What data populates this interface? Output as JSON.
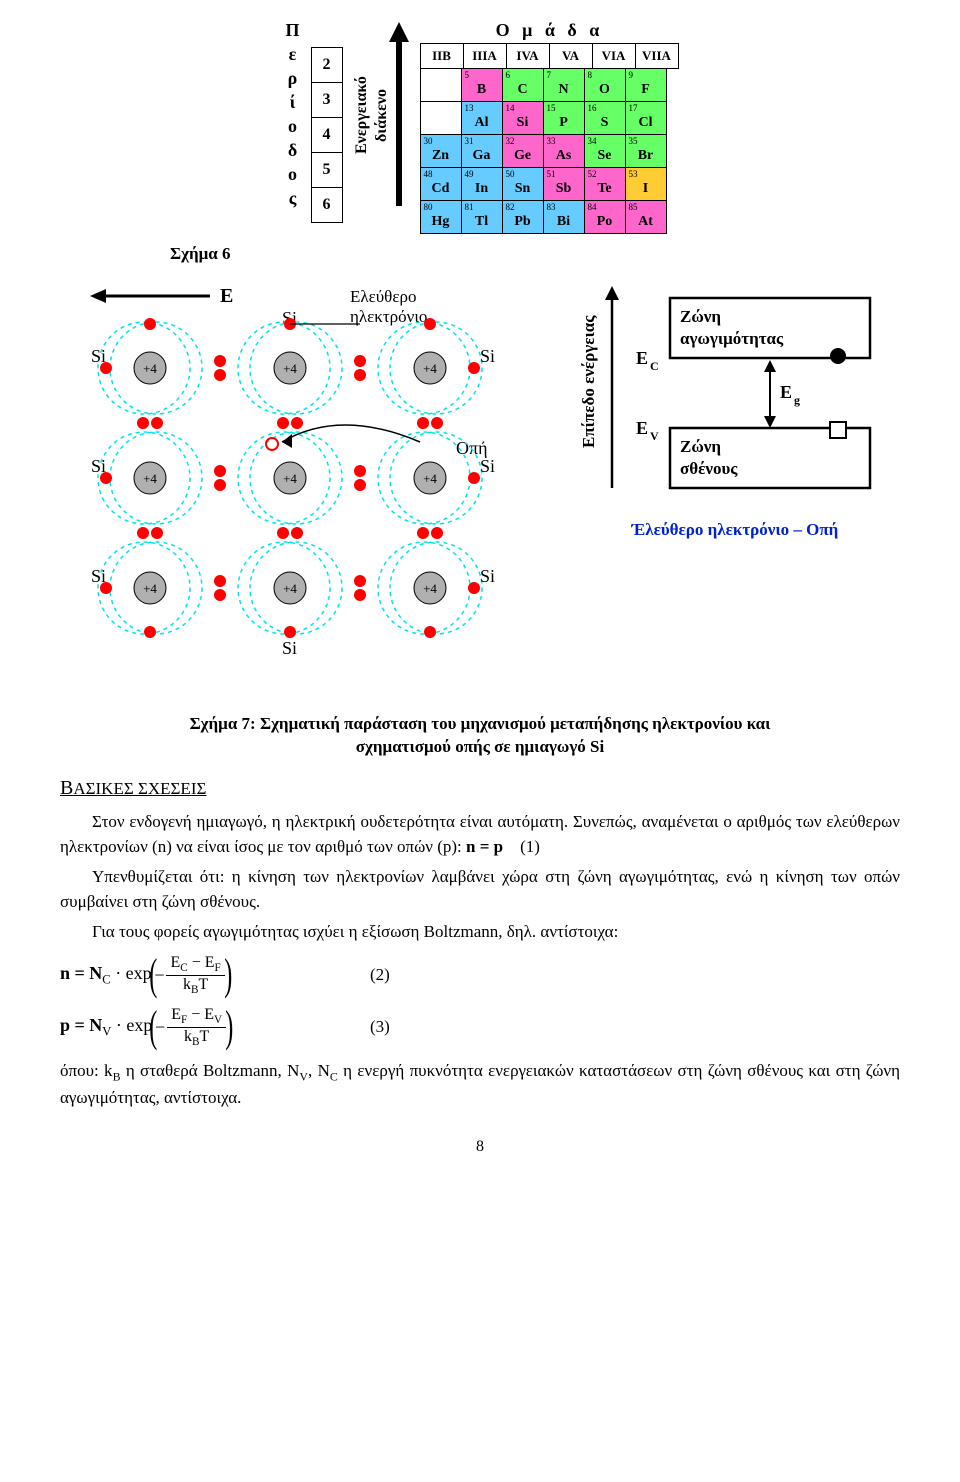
{
  "ptable": {
    "group_title_chars": "Ο μ ά δ α",
    "period_title": "Περίοδος",
    "periods": [
      "2",
      "3",
      "4",
      "5",
      "6"
    ],
    "groups": [
      "IIB",
      "IIIA",
      "IVA",
      "VA",
      "VIA",
      "VIIA"
    ],
    "arrow_label_left": "Ενεργειακό",
    "arrow_label_right": "διάκενο",
    "rows": [
      [
        null,
        {
          "n": "5",
          "s": "B",
          "c": "#ff66cc"
        },
        {
          "n": "6",
          "s": "C",
          "c": "#66ff66"
        },
        {
          "n": "7",
          "s": "N",
          "c": "#66ff66"
        },
        {
          "n": "8",
          "s": "O",
          "c": "#66ff66"
        },
        {
          "n": "9",
          "s": "F",
          "c": "#66ff66"
        }
      ],
      [
        null,
        {
          "n": "13",
          "s": "Al",
          "c": "#66ccff"
        },
        {
          "n": "14",
          "s": "Si",
          "c": "#ff66cc"
        },
        {
          "n": "15",
          "s": "P",
          "c": "#66ff66"
        },
        {
          "n": "16",
          "s": "S",
          "c": "#66ff66"
        },
        {
          "n": "17",
          "s": "Cl",
          "c": "#66ff66"
        }
      ],
      [
        {
          "n": "30",
          "s": "Zn",
          "c": "#66ccff"
        },
        {
          "n": "31",
          "s": "Ga",
          "c": "#66ccff"
        },
        {
          "n": "32",
          "s": "Ge",
          "c": "#ff66cc"
        },
        {
          "n": "33",
          "s": "As",
          "c": "#ff66cc"
        },
        {
          "n": "34",
          "s": "Se",
          "c": "#66ff66"
        },
        {
          "n": "35",
          "s": "Br",
          "c": "#66ff66"
        }
      ],
      [
        {
          "n": "48",
          "s": "Cd",
          "c": "#66ccff"
        },
        {
          "n": "49",
          "s": "In",
          "c": "#66ccff"
        },
        {
          "n": "50",
          "s": "Sn",
          "c": "#66ccff"
        },
        {
          "n": "51",
          "s": "Sb",
          "c": "#ff66cc"
        },
        {
          "n": "52",
          "s": "Te",
          "c": "#ff66cc"
        },
        {
          "n": "53",
          "s": "I",
          "c": "#ffcc33"
        }
      ],
      [
        {
          "n": "80",
          "s": "Hg",
          "c": "#66ccff"
        },
        {
          "n": "81",
          "s": "Tl",
          "c": "#66ccff"
        },
        {
          "n": "82",
          "s": "Pb",
          "c": "#66ccff"
        },
        {
          "n": "83",
          "s": "Bi",
          "c": "#66ccff"
        },
        {
          "n": "84",
          "s": "Po",
          "c": "#ff66cc"
        },
        {
          "n": "85",
          "s": "At",
          "c": "#ff66cc"
        }
      ]
    ]
  },
  "fig6_caption": "Σχήμα 6",
  "fig7": {
    "si_label": "Si",
    "e_label": "E",
    "free_e_label": "Ελεύθερο\nηλεκτρόνιο",
    "hole_label": "Οπή",
    "charge": "+4",
    "atom_color": "#b0b0b0",
    "electron_color": "#ff0000",
    "orbit_color": "#00e6e6",
    "hole_stroke": "#ff0000"
  },
  "energy": {
    "y_axis_label": "Επίπεδο ενέργειας",
    "cond_band": "Ζώνη αγωγιμότητας",
    "val_band": "Ζώνη σθένους",
    "ec": "E",
    "ec_sub": "C",
    "ev": "E",
    "ev_sub": "V",
    "eg": "E",
    "eg_sub": "g"
  },
  "blue_label": "Έλεύθερο ηλεκτρόνιο – Οπή",
  "fig7_caption_l1": "Σχήμα 7: Σχηματική παράσταση του μηχανισμού μεταπήδησης ηλεκτρονίου και",
  "fig7_caption_l2": "σχηματισμού οπής σε ημιαγωγό Si",
  "section_head_cap": "Β",
  "section_head_rest": "ΑΣΙΚΕΣ ΣΧΕΣΕΙΣ",
  "para1a": "Στον ενδογενή ημιαγωγό, η ηλεκτρική ουδετερότητα είναι αυτόματη. Συνεπώς, αναμένεται ο αριθμός των ελεύθερων ηλεκτρονίων (n) να είναι ίσος με τον αριθμό των οπών (p):  ",
  "para1b_eq": "n = p",
  "para1b_eqno": "(1)",
  "para2": "Υπενθυμίζεται ότι: η κίνηση των ηλεκτρονίων λαμβάνει χώρα στη ζώνη αγωγιμότητας, ενώ η κίνηση των οπών συμβαίνει στη ζώνη σθένους.",
  "para3": "Για τους φορείς αγωγιμότητας ισχύει η εξίσωση Boltzmann, δηλ. αντίστοιχα:",
  "eq2": {
    "lhs": "n = N",
    "lhs_sub": "C",
    "mid": " · exp",
    "top_a": "E",
    "top_a_sub": "C",
    "minus": " − ",
    "top_b": "E",
    "top_b_sub": "F",
    "bot_a": "k",
    "bot_a_sub": "B",
    "bot_b": "T",
    "eqno": "(2)"
  },
  "eq3": {
    "lhs": "p = N",
    "lhs_sub": "V",
    "mid": " · exp",
    "top_a": "E",
    "top_a_sub": "F",
    "minus": " − ",
    "top_b": "E",
    "top_b_sub": "V",
    "bot_a": "k",
    "bot_a_sub": "B",
    "bot_b": "T",
    "eqno": "(3)"
  },
  "para4a": "όπου: k",
  "para4a_sub": "B",
  "para4b": " η σταθερά Boltzmann, N",
  "para4b_sub": "V",
  "para4c": ", N",
  "para4c_sub": "C",
  "para4d": " η ενεργή πυκνότητα ενεργειακών καταστάσεων στη ζώνη σθένους και στη ζώνη αγωγιμότητας, αντίστοιχα.",
  "page_number": "8"
}
